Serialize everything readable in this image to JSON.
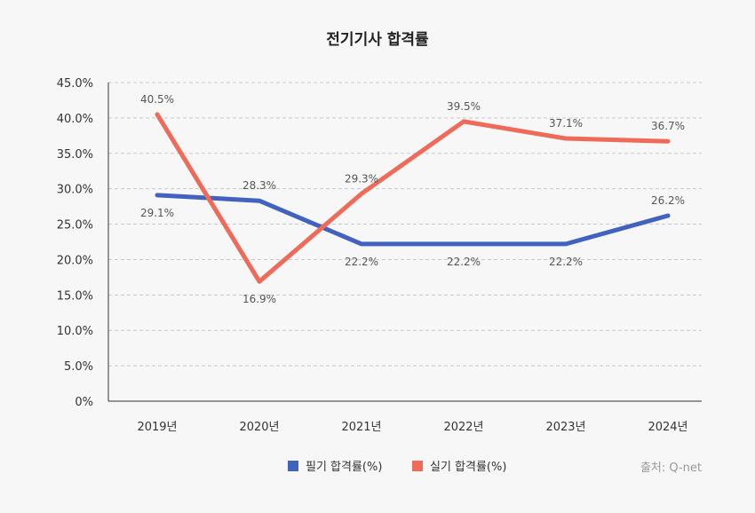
{
  "chart_data": {
    "type": "line",
    "title": "전기기사 합격률",
    "categories": [
      "2019년",
      "2020년",
      "2021년",
      "2022년",
      "2023년",
      "2024년"
    ],
    "series": [
      {
        "name": "필기 합격률(%)",
        "color": "#4262c0",
        "values": [
          29.1,
          28.3,
          22.2,
          22.2,
          22.2,
          26.2
        ]
      },
      {
        "name": "실기 합격률(%)",
        "color": "#ef6a58",
        "values": [
          40.5,
          16.9,
          29.3,
          39.5,
          37.1,
          36.7
        ]
      }
    ],
    "ylim": [
      0,
      45
    ],
    "yticks": [
      "0%",
      "5.0%",
      "10.0%",
      "15.0%",
      "20.0%",
      "25.0%",
      "30.0%",
      "35.0%",
      "40.0%",
      "45.0%"
    ],
    "grid": true,
    "legend": "bottom",
    "source": "출처: Q-net"
  }
}
